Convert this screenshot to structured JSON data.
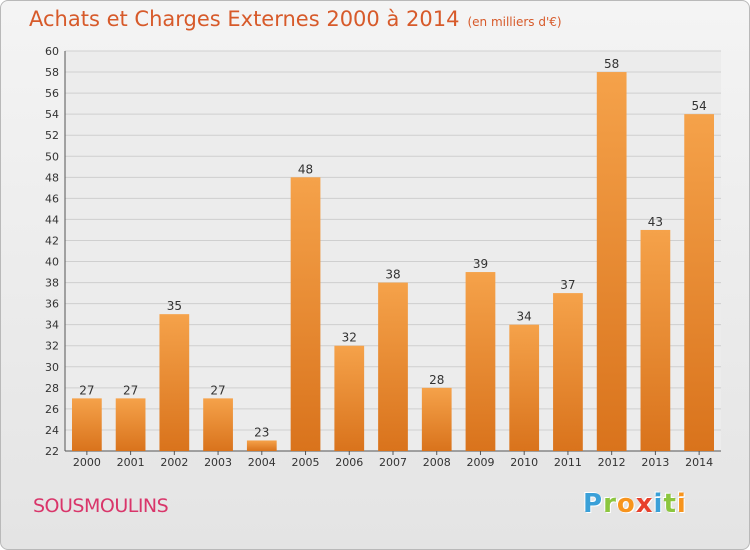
{
  "header": {
    "title": "Achats et Charges Externes 2000 à 2014",
    "subtitle": "(en milliers d'€)"
  },
  "footer": {
    "location": "SOUSMOULINS",
    "logo": {
      "letters": [
        {
          "ch": "P",
          "color": "#3aa0d8"
        },
        {
          "ch": "r",
          "color": "#8cc63f"
        },
        {
          "ch": "o",
          "color": "#f7941d"
        },
        {
          "ch": "x",
          "color": "#e8412c"
        },
        {
          "ch": "i",
          "color": "#3aa0d8"
        },
        {
          "ch": "t",
          "color": "#8cc63f"
        },
        {
          "ch": "i",
          "color": "#f7941d"
        }
      ]
    }
  },
  "chart_data": {
    "type": "bar",
    "categories": [
      "2000",
      "2001",
      "2002",
      "2003",
      "2004",
      "2005",
      "2006",
      "2007",
      "2008",
      "2009",
      "2010",
      "2011",
      "2012",
      "2013",
      "2014"
    ],
    "values": [
      27,
      27,
      35,
      27,
      23,
      48,
      32,
      38,
      28,
      39,
      34,
      37,
      58,
      43,
      54
    ],
    "ylim": [
      22,
      60
    ],
    "ytick_step": 2,
    "grid": true,
    "bar_color_top": "#f5a24a",
    "bar_color_bottom": "#d9731c",
    "data_labels": true
  }
}
